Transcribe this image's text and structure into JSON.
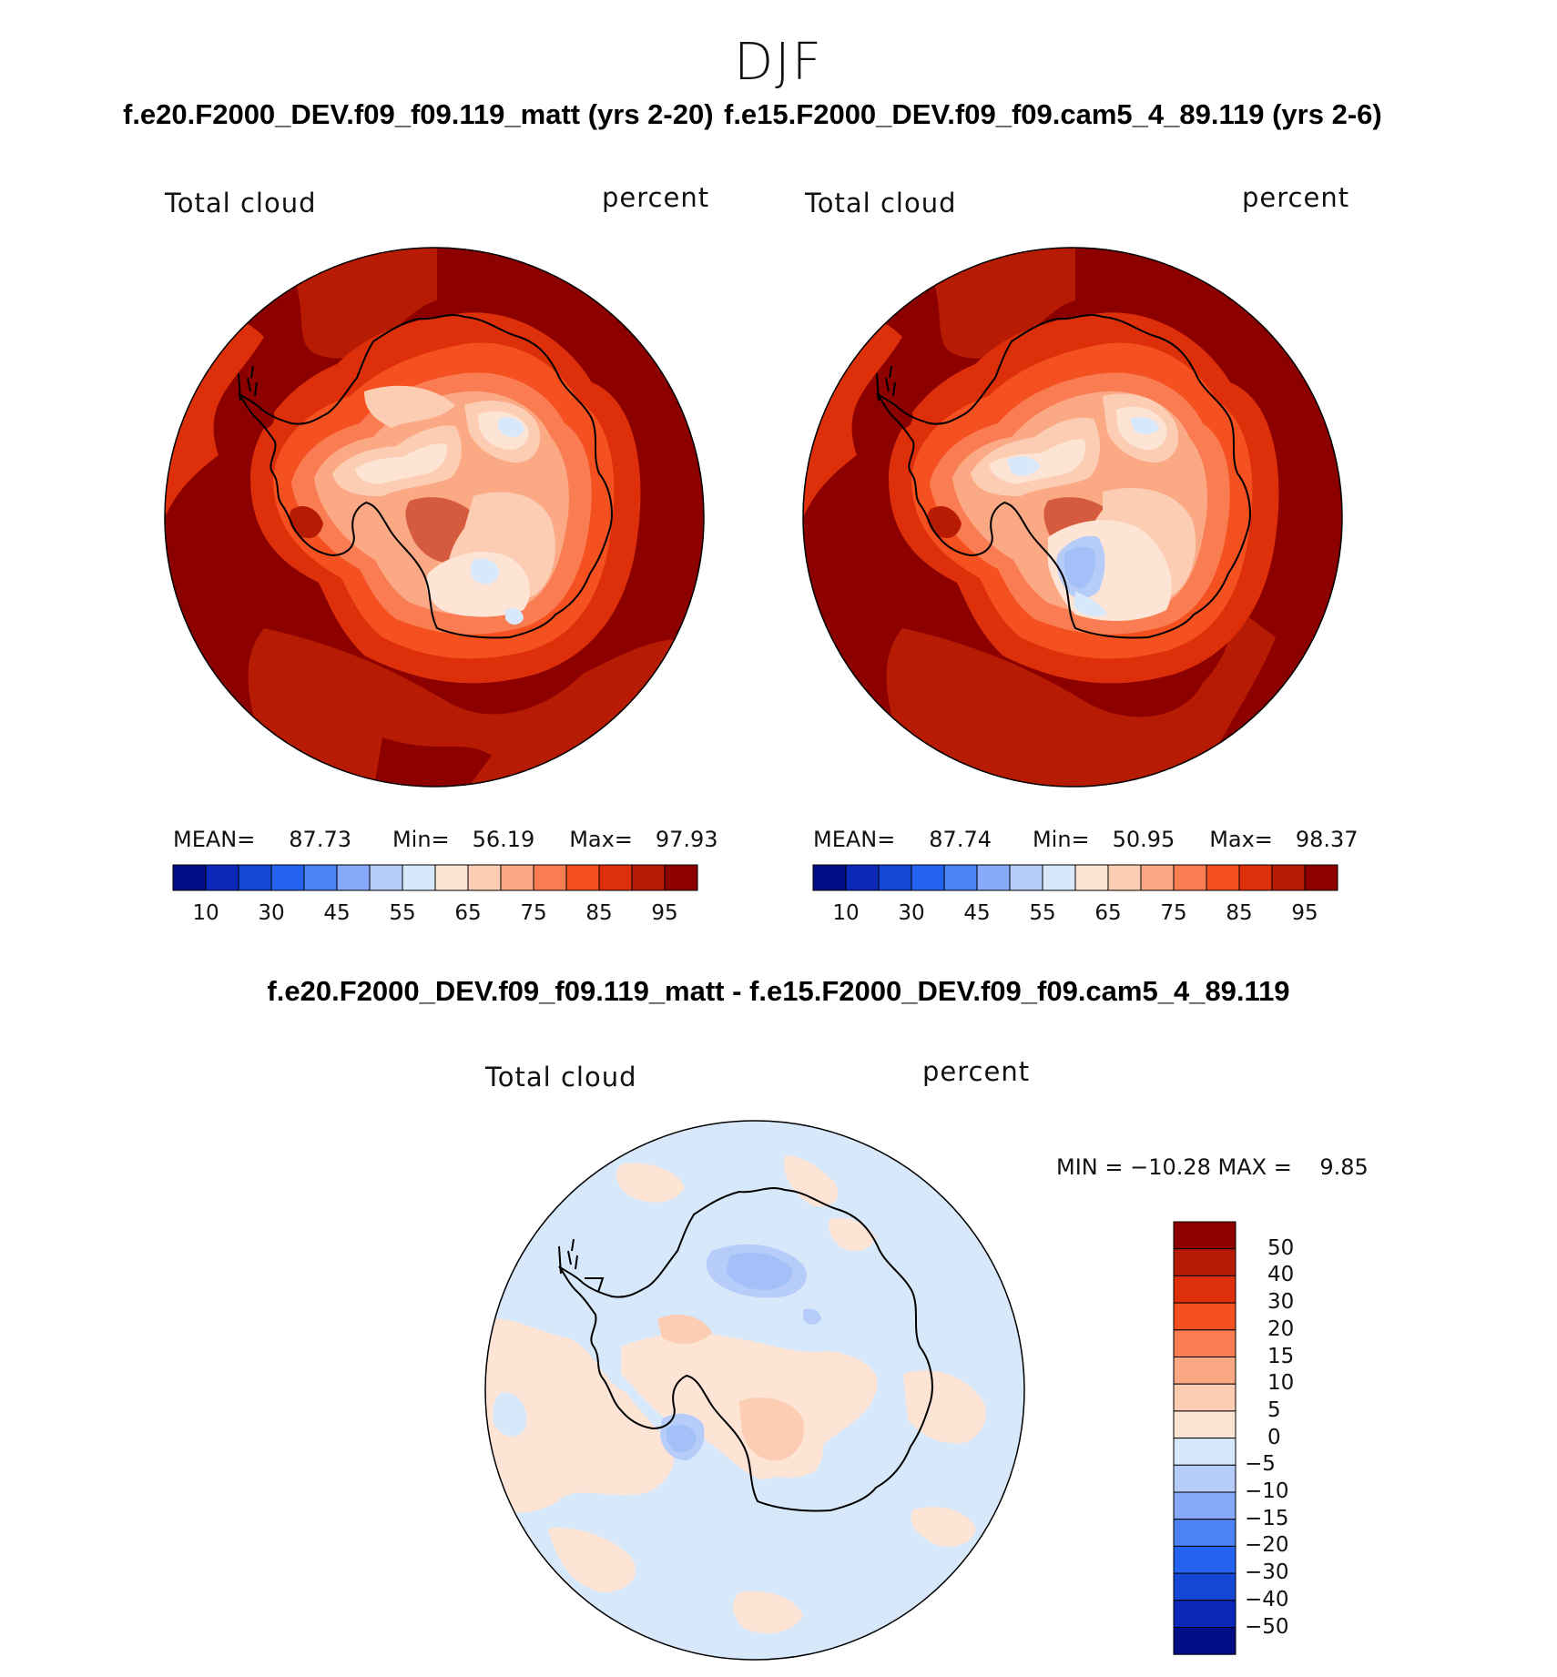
{
  "figure": {
    "season": "DJF",
    "variable": "Total cloud",
    "units": "percent"
  },
  "panels": [
    {
      "title": "f.e20.F2000_DEV.f09_f09.119_matt (yrs 2-20)",
      "label_left": "Total cloud",
      "label_right": "percent",
      "stats": {
        "mean_label": "MEAN=",
        "mean": "87.73",
        "min_label": "Min=",
        "min": "56.19",
        "max_label": "Max=",
        "max": "97.93"
      }
    },
    {
      "title": "f.e15.F2000_DEV.f09_f09.cam5_4_89.119 (yrs 2-6)",
      "label_left": "Total cloud",
      "label_right": "percent",
      "stats": {
        "mean_label": "MEAN=",
        "mean": "87.74",
        "min_label": "Min=",
        "min": "50.95",
        "max_label": "Max=",
        "max": "98.37"
      }
    }
  ],
  "abs_colorbar": {
    "colors": [
      "#000d85",
      "#0a29b8",
      "#1447d6",
      "#2463f2",
      "#4d82f5",
      "#86a9f8",
      "#b6cdfa",
      "#d8e8fb",
      "#fde4d4",
      "#fccdb2",
      "#fba985",
      "#fa7c52",
      "#f5501f",
      "#dc2f0a",
      "#b71b03",
      "#8c0000"
    ],
    "tick_labels": [
      "10",
      "30",
      "45",
      "55",
      "65",
      "75",
      "85",
      "95"
    ]
  },
  "diff_panel": {
    "title": "f.e20.F2000_DEV.f09_f09.119_matt - f.e15.F2000_DEV.f09_f09.cam5_4_89.119",
    "label_left": "Total cloud",
    "label_right": "percent",
    "minmax": "MIN = −10.28 MAX =    9.85"
  },
  "diff_colorbar": {
    "colors_top_to_bottom": [
      "#8c0000",
      "#b71b03",
      "#dc2f0a",
      "#f5501f",
      "#fa7c52",
      "#fba985",
      "#fccdb2",
      "#fde4d4",
      "#d8e8fb",
      "#b6cdfa",
      "#86a9f8",
      "#4d82f5",
      "#2463f2",
      "#1447d6",
      "#0a29b8",
      "#000d85"
    ],
    "tick_labels": [
      "50",
      "40",
      "30",
      "20",
      "15",
      "10",
      "5",
      "0",
      "−5",
      "−10",
      "−15",
      "−20",
      "−30",
      "−40",
      "−50"
    ]
  },
  "map_colors": {
    "ocean_high": "#8c0000",
    "ocean_mid": "#b71b03",
    "coast_band": "#dc2f0a",
    "orange": "#f5501f",
    "salmon": "#fa7c52",
    "light_salmon": "#fba985",
    "peach": "#fccdb2",
    "cream": "#fde4d4",
    "pale_blue": "#d8e8fb",
    "light_blue": "#b6cdfa",
    "mid_blue": "#a4c0f8"
  }
}
